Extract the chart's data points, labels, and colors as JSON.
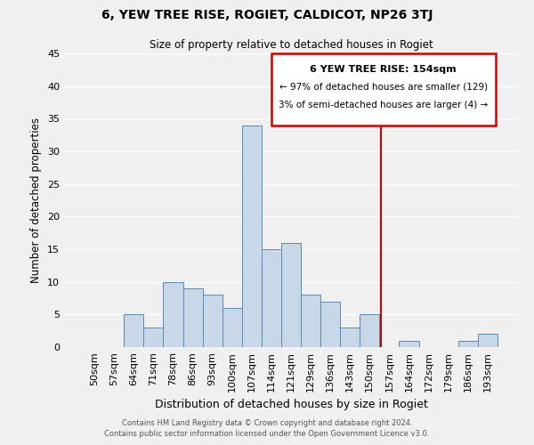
{
  "title": "6, YEW TREE RISE, ROGIET, CALDICOT, NP26 3TJ",
  "subtitle": "Size of property relative to detached houses in Rogiet",
  "xlabel": "Distribution of detached houses by size in Rogiet",
  "ylabel": "Number of detached properties",
  "bar_color": "#c8d8e8",
  "bar_edge_color": "#5a8ab0",
  "categories": [
    "50sqm",
    "57sqm",
    "64sqm",
    "71sqm",
    "78sqm",
    "86sqm",
    "93sqm",
    "100sqm",
    "107sqm",
    "114sqm",
    "121sqm",
    "129sqm",
    "136sqm",
    "143sqm",
    "150sqm",
    "157sqm",
    "164sqm",
    "172sqm",
    "179sqm",
    "186sqm",
    "193sqm"
  ],
  "values": [
    0,
    0,
    5,
    3,
    10,
    9,
    8,
    6,
    34,
    15,
    16,
    8,
    7,
    3,
    5,
    0,
    1,
    0,
    0,
    1,
    2
  ],
  "ylim": [
    0,
    45
  ],
  "yticks": [
    0,
    5,
    10,
    15,
    20,
    25,
    30,
    35,
    40,
    45
  ],
  "marker_label": "6 YEW TREE RISE: 154sqm",
  "annotation_line1": "← 97% of detached houses are smaller (129)",
  "annotation_line2": "3% of semi-detached houses are larger (4) →",
  "annotation_box_color": "#ffffff",
  "annotation_border_color": "#cc0000",
  "marker_line_color": "#cc0000",
  "footer1": "Contains HM Land Registry data © Crown copyright and database right 2024.",
  "footer2": "Contains public sector information licensed under the Open Government Licence v3.0.",
  "background_color": "#f0f0f0",
  "grid_color": "#ffffff"
}
